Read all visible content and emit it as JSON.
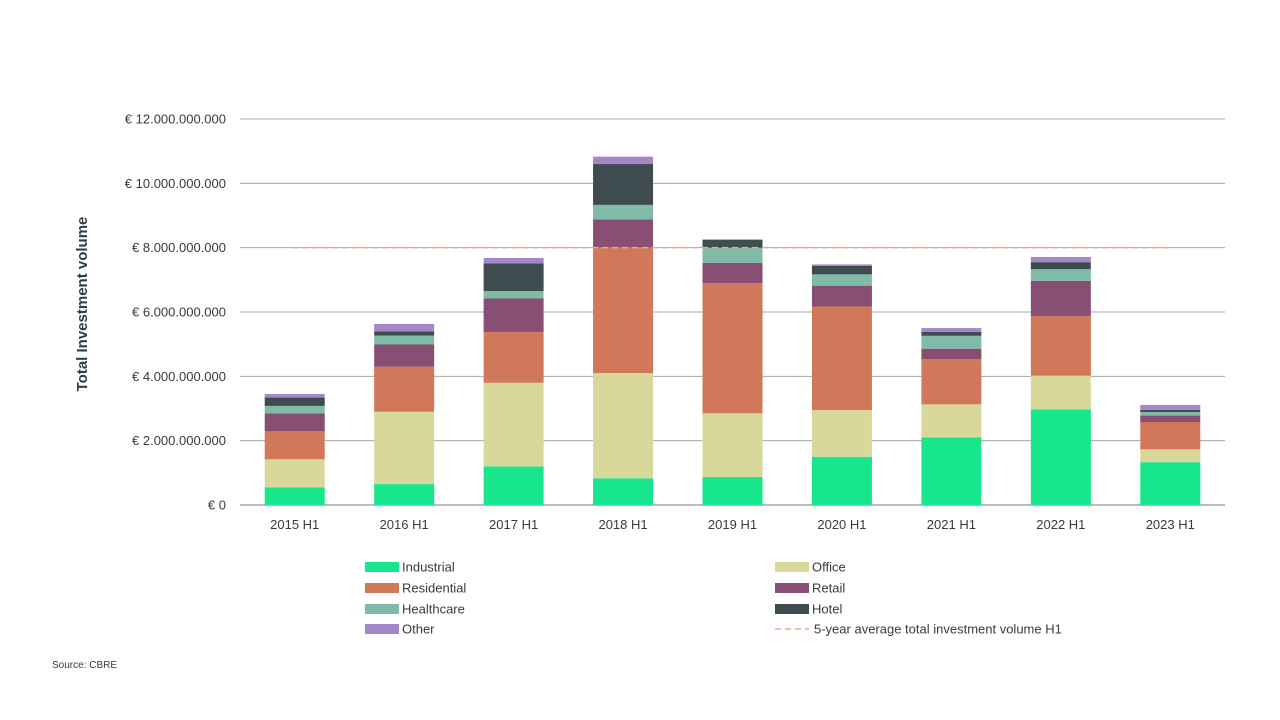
{
  "chart_data": {
    "type": "bar",
    "stacked": true,
    "title": "",
    "ylabel": "Total Investment volume",
    "xlabel": "",
    "ylim": [
      0,
      12000000000
    ],
    "yticks": [
      0,
      2000000000,
      4000000000,
      6000000000,
      8000000000,
      10000000000,
      12000000000
    ],
    "ytick_labels": [
      "€ 0",
      "€ 2.000.000.000",
      "€ 4.000.000.000",
      "€ 6.000.000.000",
      "€ 8.000.000.000",
      "€ 10.000.000.000",
      "€ 12.000.000.000"
    ],
    "categories": [
      "2015 H1",
      "2016 H1",
      "2017 H1",
      "2018 H1",
      "2019 H1",
      "2020 H1",
      "2021 H1",
      "2022 H1",
      "2023 H1"
    ],
    "series": [
      {
        "name": "Industrial",
        "color": "#17e68c",
        "values": [
          550000000,
          650000000,
          1200000000,
          830000000,
          870000000,
          1500000000,
          2100000000,
          2970000000,
          1330000000
        ]
      },
      {
        "name": "Office",
        "color": "#d9d89b",
        "values": [
          870000000,
          2250000000,
          2600000000,
          3270000000,
          1980000000,
          1450000000,
          1030000000,
          1050000000,
          400000000
        ]
      },
      {
        "name": "Residential",
        "color": "#d2785a",
        "values": [
          870000000,
          1400000000,
          1580000000,
          3910000000,
          4050000000,
          3220000000,
          1400000000,
          1850000000,
          850000000
        ]
      },
      {
        "name": "Retail",
        "color": "#884e74",
        "values": [
          560000000,
          690000000,
          1040000000,
          870000000,
          630000000,
          650000000,
          330000000,
          1100000000,
          200000000
        ]
      },
      {
        "name": "Healthcare",
        "color": "#80bba7",
        "values": [
          230000000,
          280000000,
          230000000,
          450000000,
          470000000,
          350000000,
          400000000,
          360000000,
          110000000
        ]
      },
      {
        "name": "Hotel",
        "color": "#3f4c4f",
        "values": [
          260000000,
          130000000,
          860000000,
          1270000000,
          250000000,
          260000000,
          120000000,
          220000000,
          70000000
        ]
      },
      {
        "name": "Other",
        "color": "#a487c8",
        "values": [
          110000000,
          230000000,
          170000000,
          230000000,
          0,
          50000000,
          120000000,
          160000000,
          150000000
        ]
      }
    ],
    "reference_line": {
      "name": "5-year average total investment volume H1",
      "value": 8000000000,
      "color": "#f0a58a",
      "style": "dashed"
    },
    "legend_position": "bottom",
    "grid": true
  },
  "source": "Source: CBRE"
}
